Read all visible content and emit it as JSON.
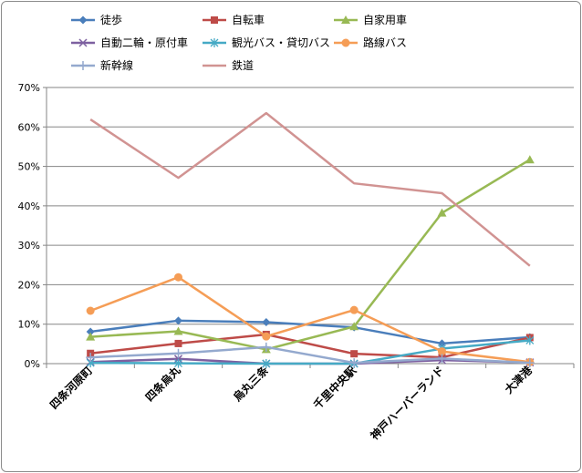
{
  "chart_data": {
    "type": "line",
    "categories": [
      "四条河原町",
      "四条烏丸",
      "烏丸三条",
      "千里中央駅",
      "神戸ハーバーランド",
      "大津港"
    ],
    "ylim": [
      0,
      70
    ],
    "yticks": [
      0,
      10,
      20,
      30,
      40,
      50,
      60,
      70
    ],
    "ytick_labels": [
      "0%",
      "10%",
      "20%",
      "30%",
      "40%",
      "50%",
      "60%",
      "70%"
    ],
    "grid": true,
    "legend_position": "top",
    "series": [
      {
        "name": "徒歩",
        "values": [
          8.1,
          10.9,
          10.5,
          9.2,
          5.1,
          6.7
        ],
        "color": "#4a7ebb",
        "marker": "diamond"
      },
      {
        "name": "自転車",
        "values": [
          2.6,
          5.1,
          7.4,
          2.5,
          1.6,
          6.6
        ],
        "color": "#be4b48",
        "marker": "square"
      },
      {
        "name": "自家用車",
        "values": [
          6.8,
          8.2,
          3.6,
          9.4,
          38.2,
          51.7
        ],
        "color": "#98b954",
        "marker": "triangle"
      },
      {
        "name": "自動二輪・原付車",
        "values": [
          0.4,
          1.2,
          0.0,
          0.0,
          0.9,
          0.3
        ],
        "color": "#7d60a0",
        "marker": "x"
      },
      {
        "name": "観光バス・貸切バス",
        "values": [
          0.2,
          0.1,
          0.0,
          0.0,
          3.8,
          5.9
        ],
        "color": "#46aac5",
        "marker": "star"
      },
      {
        "name": "路線バス",
        "values": [
          13.4,
          21.9,
          6.9,
          13.6,
          3.1,
          0.4
        ],
        "color": "#f59d56",
        "marker": "circle"
      },
      {
        "name": "新幹線",
        "values": [
          1.6,
          2.6,
          4.2,
          0.2,
          1.3,
          0.2
        ],
        "color": "#94a9ce",
        "marker": "plus"
      },
      {
        "name": "鉄道",
        "values": [
          61.9,
          47.1,
          63.5,
          45.7,
          43.2,
          24.8
        ],
        "color": "#d19392",
        "marker": "none"
      }
    ]
  }
}
